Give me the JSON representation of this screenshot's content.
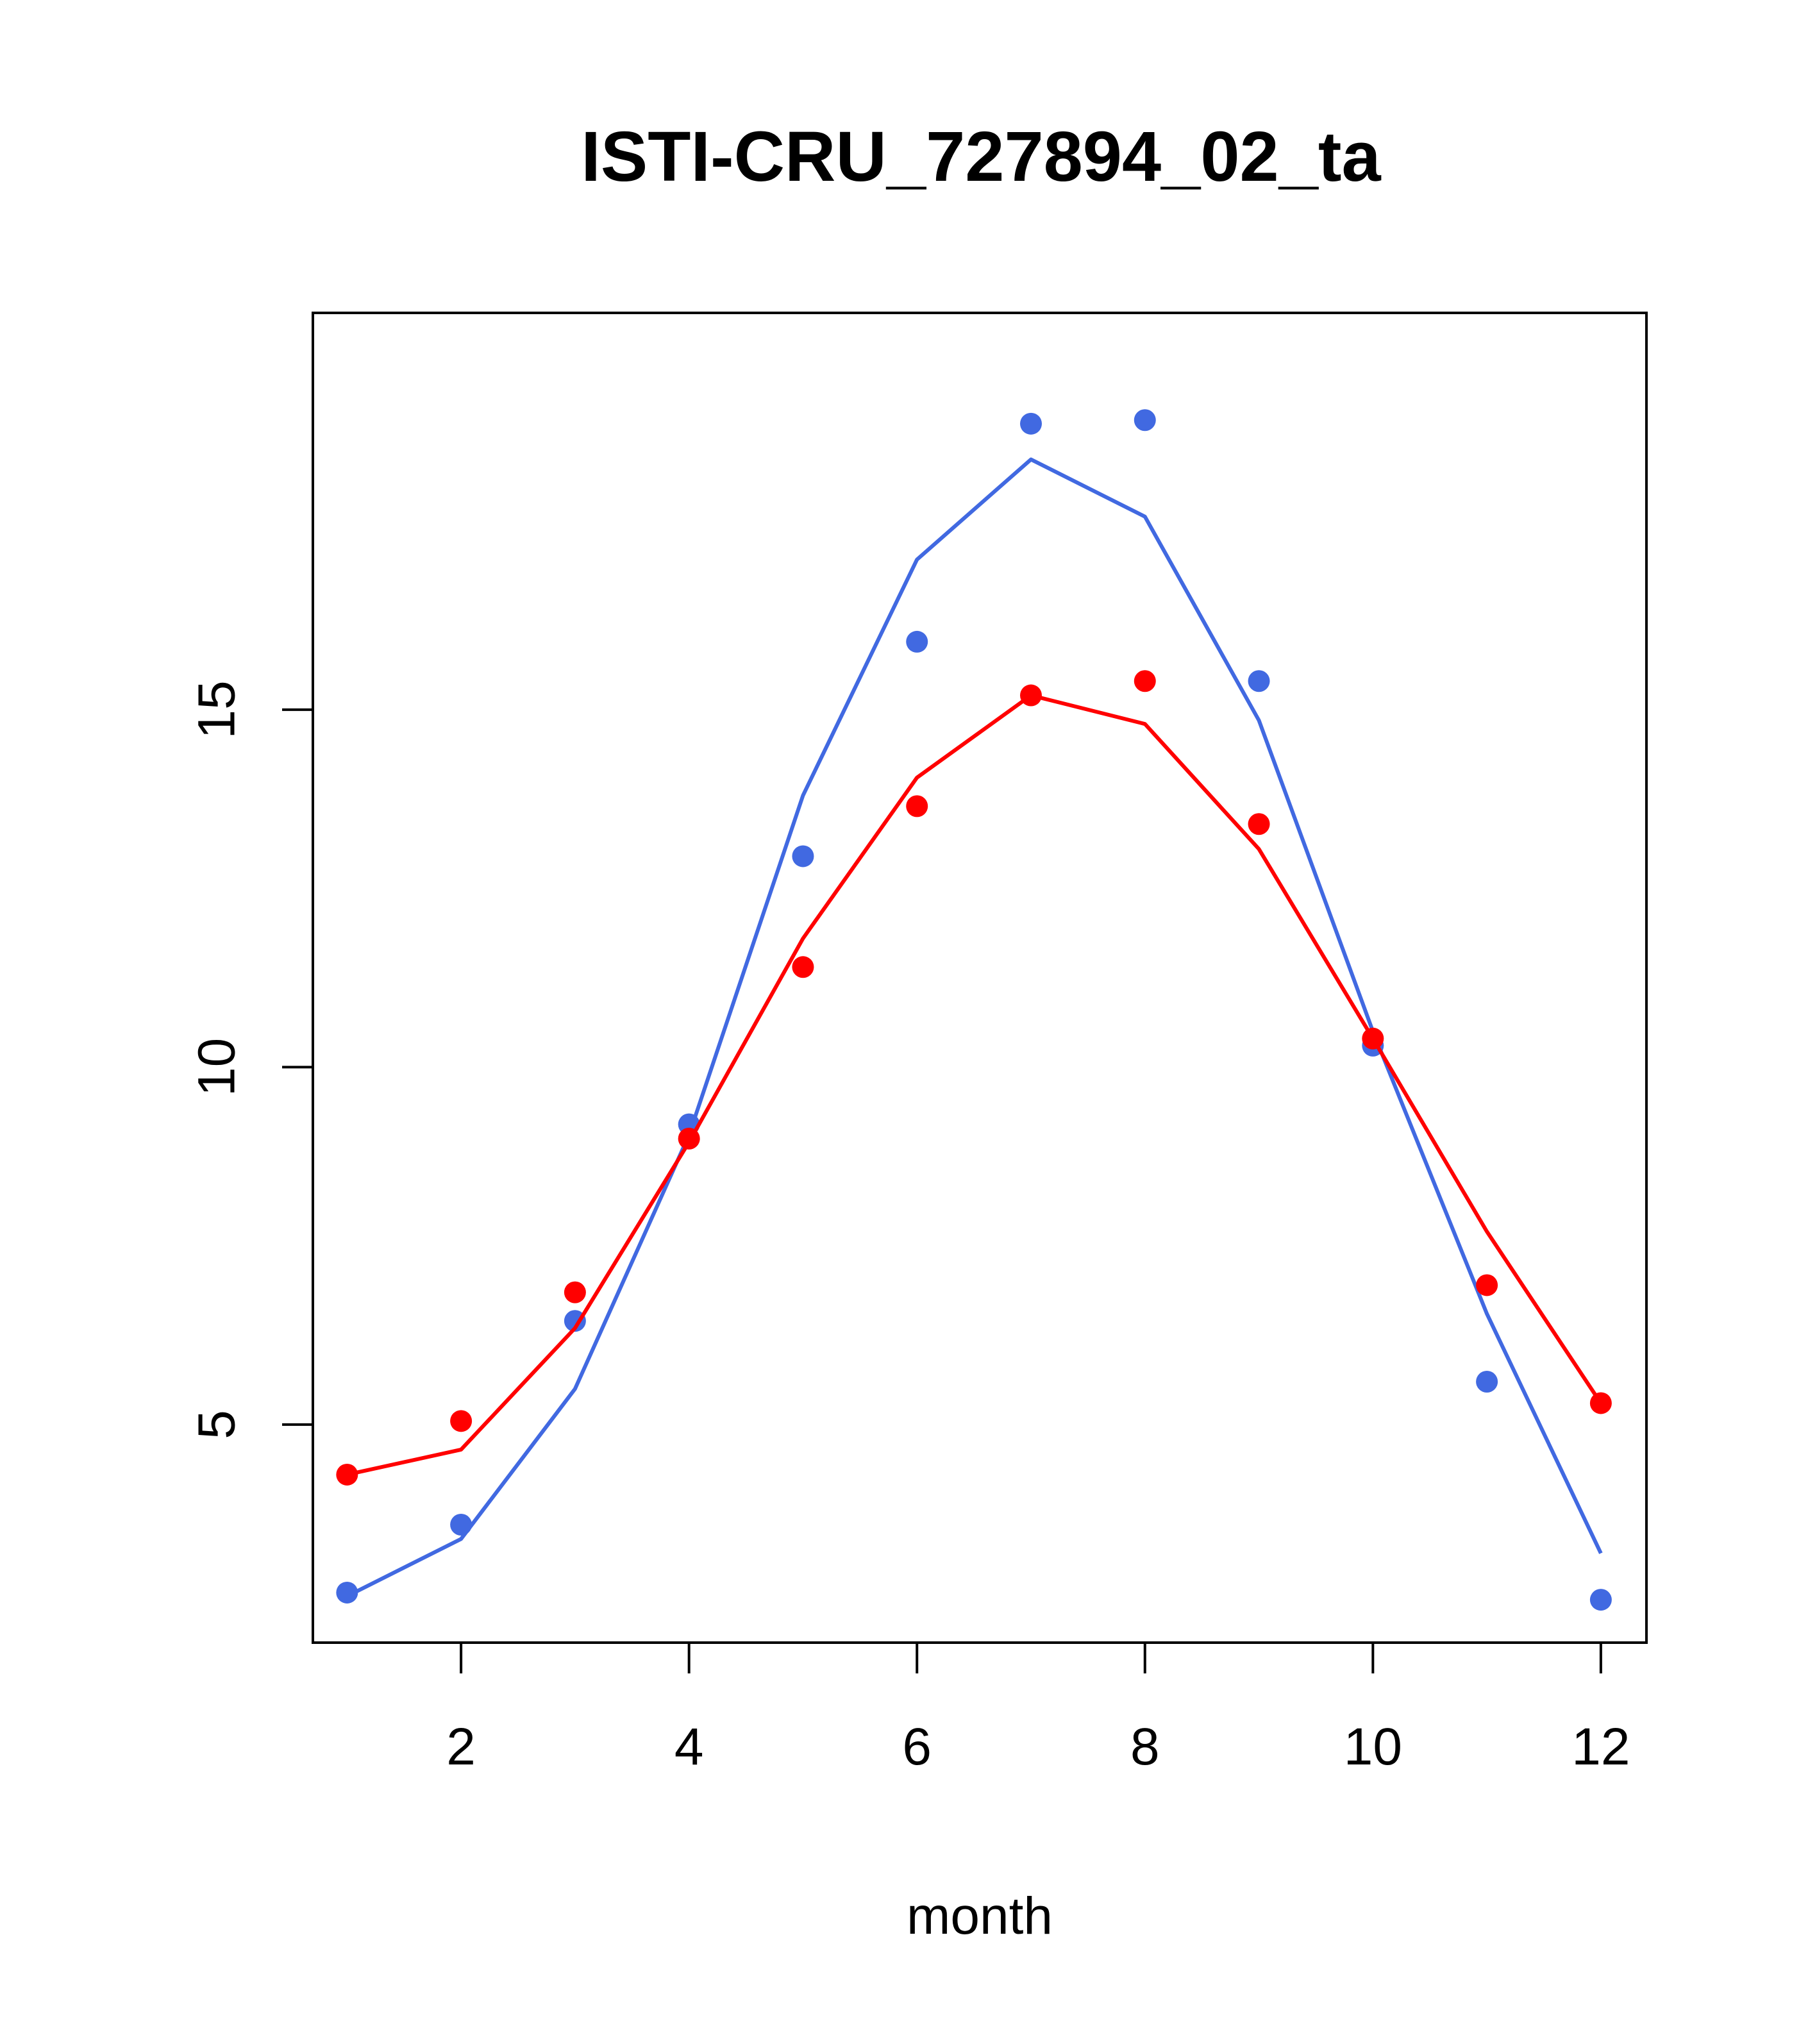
{
  "chart_data": {
    "type": "line",
    "title": "ISTI-CRU_727894_02_ta",
    "xlabel": "month",
    "ylabel": "",
    "xlim": [
      0.7,
      12.4
    ],
    "ylim": [
      1.95,
      20.55
    ],
    "xticks": [
      2,
      4,
      6,
      8,
      10,
      12
    ],
    "yticks": [
      5,
      10,
      15
    ],
    "x": [
      1,
      2,
      3,
      4,
      5,
      6,
      7,
      8,
      9,
      10,
      11,
      12
    ],
    "grid": false,
    "legend": "none",
    "series": [
      {
        "color": "#4169e1",
        "points": [
          2.65,
          3.6,
          6.45,
          9.2,
          12.95,
          15.95,
          19.0,
          19.05,
          15.4,
          10.3,
          5.6,
          2.55
        ],
        "line": [
          2.6,
          3.4,
          5.5,
          9.05,
          13.8,
          17.1,
          18.5,
          17.7,
          14.85,
          10.5,
          6.55,
          3.2
        ]
      },
      {
        "color": "#ff0000",
        "points": [
          4.3,
          5.05,
          6.85,
          9.0,
          11.4,
          13.65,
          15.2,
          15.4,
          13.4,
          10.4,
          6.95,
          5.3
        ],
        "line": [
          4.3,
          4.65,
          6.35,
          8.95,
          11.8,
          14.05,
          15.2,
          14.8,
          13.05,
          10.4,
          7.7,
          5.3
        ]
      }
    ]
  }
}
